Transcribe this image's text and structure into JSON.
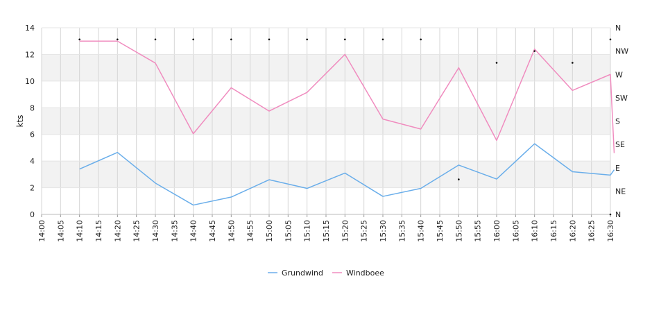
{
  "chart_data": {
    "type": "line",
    "ylabel": "kts",
    "ylim": [
      0,
      14
    ],
    "y_ticks": [
      "0",
      "2",
      "4",
      "6",
      "8",
      "10",
      "12",
      "14"
    ],
    "x_range": [
      "14:00",
      "16:30"
    ],
    "x_ticks": [
      "14:00",
      "14:05",
      "14:10",
      "14:15",
      "14:20",
      "14:25",
      "14:30",
      "14:35",
      "14:40",
      "14:45",
      "14:50",
      "14:55",
      "15:00",
      "15:05",
      "15:10",
      "15:15",
      "15:20",
      "15:25",
      "15:30",
      "15:35",
      "15:40",
      "15:45",
      "15:50",
      "15:55",
      "16:00",
      "16:05",
      "16:10",
      "16:15",
      "16:20",
      "16:25",
      "16:30"
    ],
    "y2_ticks": [
      "N",
      "NE",
      "E",
      "SE",
      "S",
      "SW",
      "W",
      "NW",
      "N"
    ],
    "y2_lim": [
      0,
      360
    ],
    "grid": true,
    "legend_position": "bottom",
    "series": [
      {
        "name": "Grundwind",
        "color": "#6aaeea",
        "points": [
          [
            "14:10",
            3.4
          ],
          [
            "14:20",
            4.65
          ],
          [
            "14:30",
            2.35
          ],
          [
            "14:40",
            0.7
          ],
          [
            "14:50",
            1.3
          ],
          [
            "15:00",
            2.6
          ],
          [
            "15:10",
            1.95
          ],
          [
            "15:20",
            3.1
          ],
          [
            "15:30",
            1.35
          ],
          [
            "15:40",
            1.95
          ],
          [
            "15:50",
            3.7
          ],
          [
            "16:00",
            2.65
          ],
          [
            "16:10",
            5.3
          ],
          [
            "16:20",
            3.2
          ],
          [
            "16:30",
            2.95
          ],
          [
            "16:31",
            3.35
          ]
        ]
      },
      {
        "name": "Windboee",
        "color": "#f08cbf",
        "points": [
          [
            "14:10",
            13.0
          ],
          [
            "14:20",
            13.0
          ],
          [
            "14:30",
            11.35
          ],
          [
            "14:40",
            6.05
          ],
          [
            "14:50",
            9.5
          ],
          [
            "15:00",
            7.75
          ],
          [
            "15:10",
            9.15
          ],
          [
            "15:20",
            12.0
          ],
          [
            "15:30",
            7.15
          ],
          [
            "15:40",
            6.4
          ],
          [
            "15:50",
            11.0
          ],
          [
            "16:00",
            5.55
          ],
          [
            "16:10",
            12.4
          ],
          [
            "16:20",
            9.3
          ],
          [
            "16:30",
            10.5
          ],
          [
            "16:31",
            4.6
          ]
        ]
      }
    ],
    "direction_points": [
      [
        "14:10",
        337.5
      ],
      [
        "14:20",
        337.5
      ],
      [
        "14:30",
        337.5
      ],
      [
        "14:40",
        337.5
      ],
      [
        "14:50",
        337.5
      ],
      [
        "15:00",
        337.5
      ],
      [
        "15:10",
        337.5
      ],
      [
        "15:20",
        337.5
      ],
      [
        "15:30",
        337.5
      ],
      [
        "15:40",
        337.5
      ],
      [
        "15:50",
        67.5
      ],
      [
        "16:00",
        292.5
      ],
      [
        "16:10",
        315
      ],
      [
        "16:20",
        292.5
      ],
      [
        "16:30",
        337.5
      ],
      [
        "16:30",
        0
      ]
    ]
  }
}
